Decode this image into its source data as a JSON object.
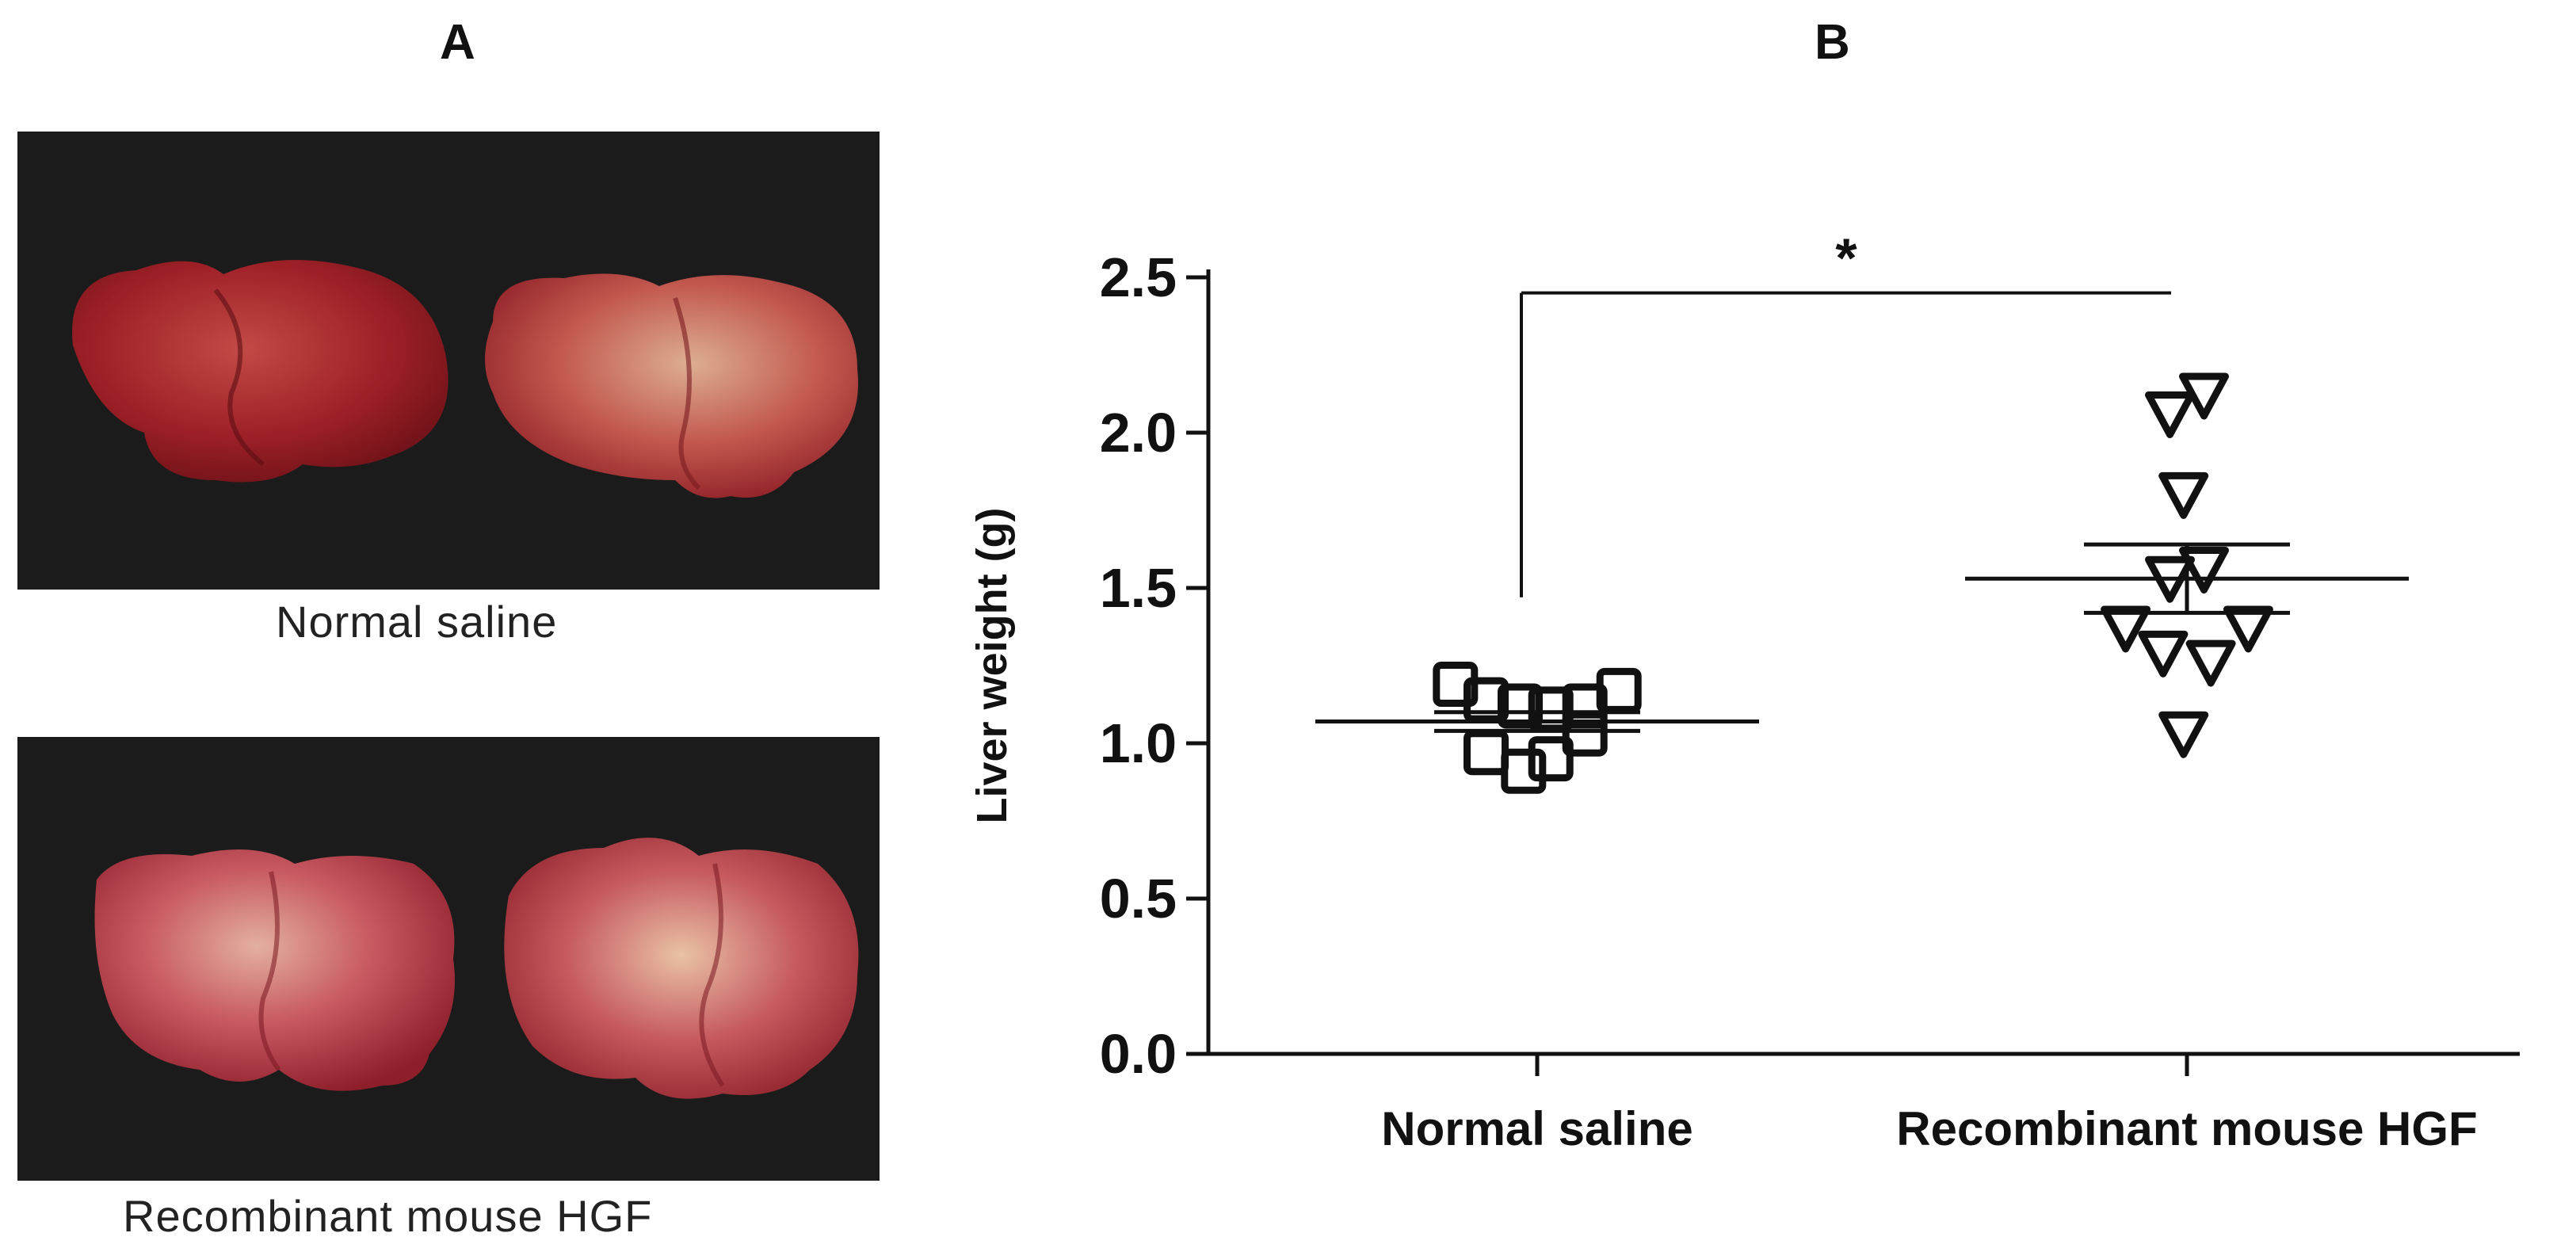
{
  "panels": {
    "a_letter": "A",
    "b_letter": "B"
  },
  "photos": {
    "top_caption": "Normal  saline",
    "bottom_caption": "Recombinant  mouse  HGF"
  },
  "colors": {
    "background_photo": "#1b1b1b",
    "liver_red": "#a8222b",
    "liver_pale": "#d9a38c",
    "marker": "#111111"
  },
  "chart_data": {
    "type": "scatter",
    "ylabel": "Liver weight (g)",
    "xlabel": "",
    "ylim": [
      0.0,
      2.5
    ],
    "yticks": [
      "0.0",
      "0.5",
      "1.0",
      "1.5",
      "2.0",
      "2.5"
    ],
    "categories": [
      "Normal saline",
      "Recombinant mouse HGF"
    ],
    "grid": false,
    "significance": {
      "label": "*",
      "between": [
        "Normal saline",
        "Recombinant mouse HGF"
      ]
    },
    "series": [
      {
        "category": "Normal saline",
        "marker": "square",
        "points": [
          {
            "offset": -0.24,
            "y": 1.19
          },
          {
            "offset": -0.15,
            "y": 1.14
          },
          {
            "offset": -0.15,
            "y": 0.97
          },
          {
            "offset": -0.05,
            "y": 1.12
          },
          {
            "offset": -0.04,
            "y": 0.91
          },
          {
            "offset": 0.04,
            "y": 1.11
          },
          {
            "offset": 0.04,
            "y": 0.95
          },
          {
            "offset": 0.14,
            "y": 1.12
          },
          {
            "offset": 0.14,
            "y": 1.03
          },
          {
            "offset": 0.24,
            "y": 1.17
          }
        ],
        "mean": 1.07,
        "sem_upper": 1.1,
        "sem_lower": 1.04
      },
      {
        "category": "Recombinant mouse HGF",
        "marker": "triangle-down",
        "points": [
          {
            "offset": -0.05,
            "y": 2.06
          },
          {
            "offset": 0.05,
            "y": 2.12
          },
          {
            "offset": -0.01,
            "y": 1.8
          },
          {
            "offset": -0.05,
            "y": 1.53
          },
          {
            "offset": 0.05,
            "y": 1.56
          },
          {
            "offset": -0.18,
            "y": 1.37
          },
          {
            "offset": 0.18,
            "y": 1.37
          },
          {
            "offset": -0.07,
            "y": 1.29
          },
          {
            "offset": 0.07,
            "y": 1.26
          },
          {
            "offset": -0.01,
            "y": 1.03
          }
        ],
        "mean": 1.53,
        "sem_upper": 1.64,
        "sem_lower": 1.42
      }
    ]
  }
}
